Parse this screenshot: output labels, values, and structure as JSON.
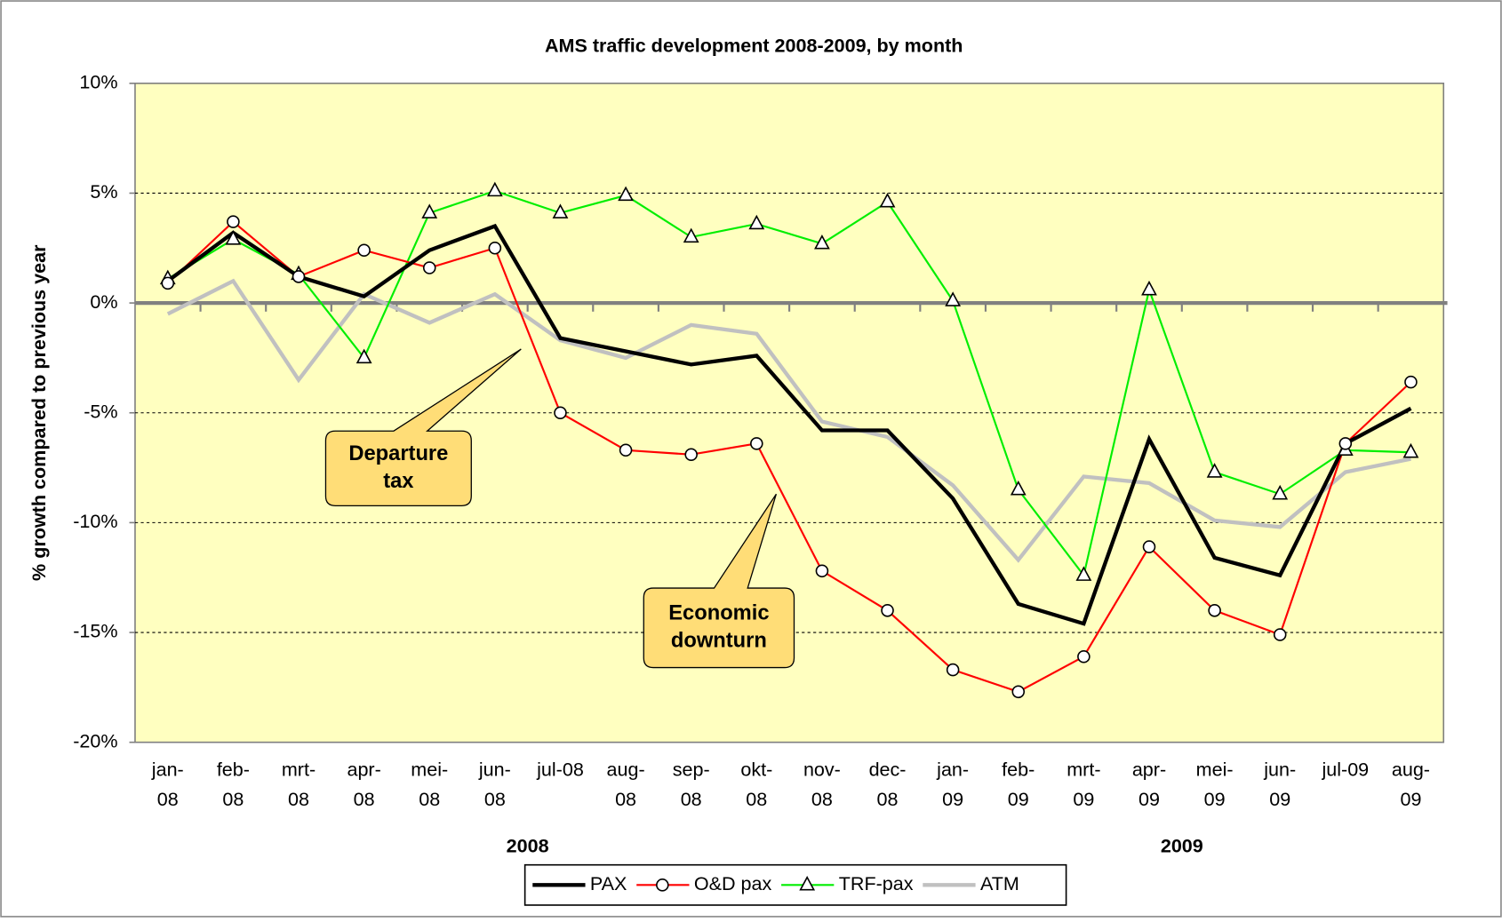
{
  "chart_data": {
    "type": "line",
    "title": "AMS traffic development 2008-2009, by month",
    "ylabel": "% growth compared to previous year",
    "categories": [
      "jan-08",
      "feb-08",
      "mrt-08",
      "apr-08",
      "mei-08",
      "jun-08",
      "jul-08",
      "aug-08",
      "sep-08",
      "okt-08",
      "nov-08",
      "dec-08",
      "jan-09",
      "feb-09",
      "mrt-09",
      "apr-09",
      "mei-09",
      "jun-09",
      "jul-09",
      "aug-09"
    ],
    "groups": [
      {
        "label": "2008",
        "from": 0,
        "to": 11
      },
      {
        "label": "2009",
        "from": 12,
        "to": 19
      }
    ],
    "ylim": [
      -20,
      10
    ],
    "yticks": [
      {
        "value": -20,
        "label": "-20%"
      },
      {
        "value": -15,
        "label": "-15%"
      },
      {
        "value": -10,
        "label": "-10%"
      },
      {
        "value": -5,
        "label": "-5%"
      },
      {
        "value": 0,
        "label": "0%"
      },
      {
        "value": 5,
        "label": "5%"
      },
      {
        "value": 10,
        "label": "10%"
      }
    ],
    "grid": true,
    "background": "#ffffc0",
    "series": [
      {
        "name": "PAX",
        "color": "#000000",
        "width": 4,
        "marker": "none",
        "values": [
          1.0,
          3.2,
          1.2,
          0.3,
          2.4,
          3.5,
          -1.6,
          -2.2,
          -2.8,
          -2.4,
          -5.8,
          -5.8,
          -8.9,
          -13.7,
          -14.6,
          -6.2,
          -11.6,
          -12.4,
          -6.4,
          -4.8
        ]
      },
      {
        "name": "O&D pax",
        "color": "#ff0000",
        "width": 2,
        "marker": "circle",
        "values": [
          0.9,
          3.7,
          1.2,
          2.4,
          1.6,
          2.5,
          -5.0,
          -6.7,
          -6.9,
          -6.4,
          -12.2,
          -14.0,
          -16.7,
          -17.7,
          -16.1,
          -11.1,
          -14.0,
          -15.1,
          -6.4,
          -3.6
        ]
      },
      {
        "name": "TRF-pax",
        "color": "#00ee00",
        "width": 2,
        "marker": "triangle",
        "values": [
          1.1,
          2.9,
          1.3,
          -2.5,
          4.1,
          5.1,
          4.1,
          4.9,
          3.0,
          3.6,
          2.7,
          4.6,
          0.1,
          -8.5,
          -12.4,
          0.6,
          -7.7,
          -8.7,
          -6.7,
          -6.8
        ]
      },
      {
        "name": "ATM",
        "color": "#c0c0c0",
        "width": 4,
        "marker": "none",
        "values": [
          -0.5,
          1.0,
          -3.5,
          0.4,
          -0.9,
          0.4,
          -1.7,
          -2.5,
          -1.0,
          -1.4,
          -5.4,
          -6.1,
          -8.3,
          -11.7,
          -7.9,
          -8.2,
          -9.9,
          -10.2,
          -7.7,
          -7.1
        ]
      }
    ],
    "annotations": [
      {
        "lines": [
          "Departure",
          "tax"
        ],
        "category": 5.4,
        "value": -2.1
      },
      {
        "lines": [
          "Economic",
          "downturn"
        ],
        "category": 9.3,
        "value": -8.7
      }
    ],
    "legend": "bottom"
  }
}
